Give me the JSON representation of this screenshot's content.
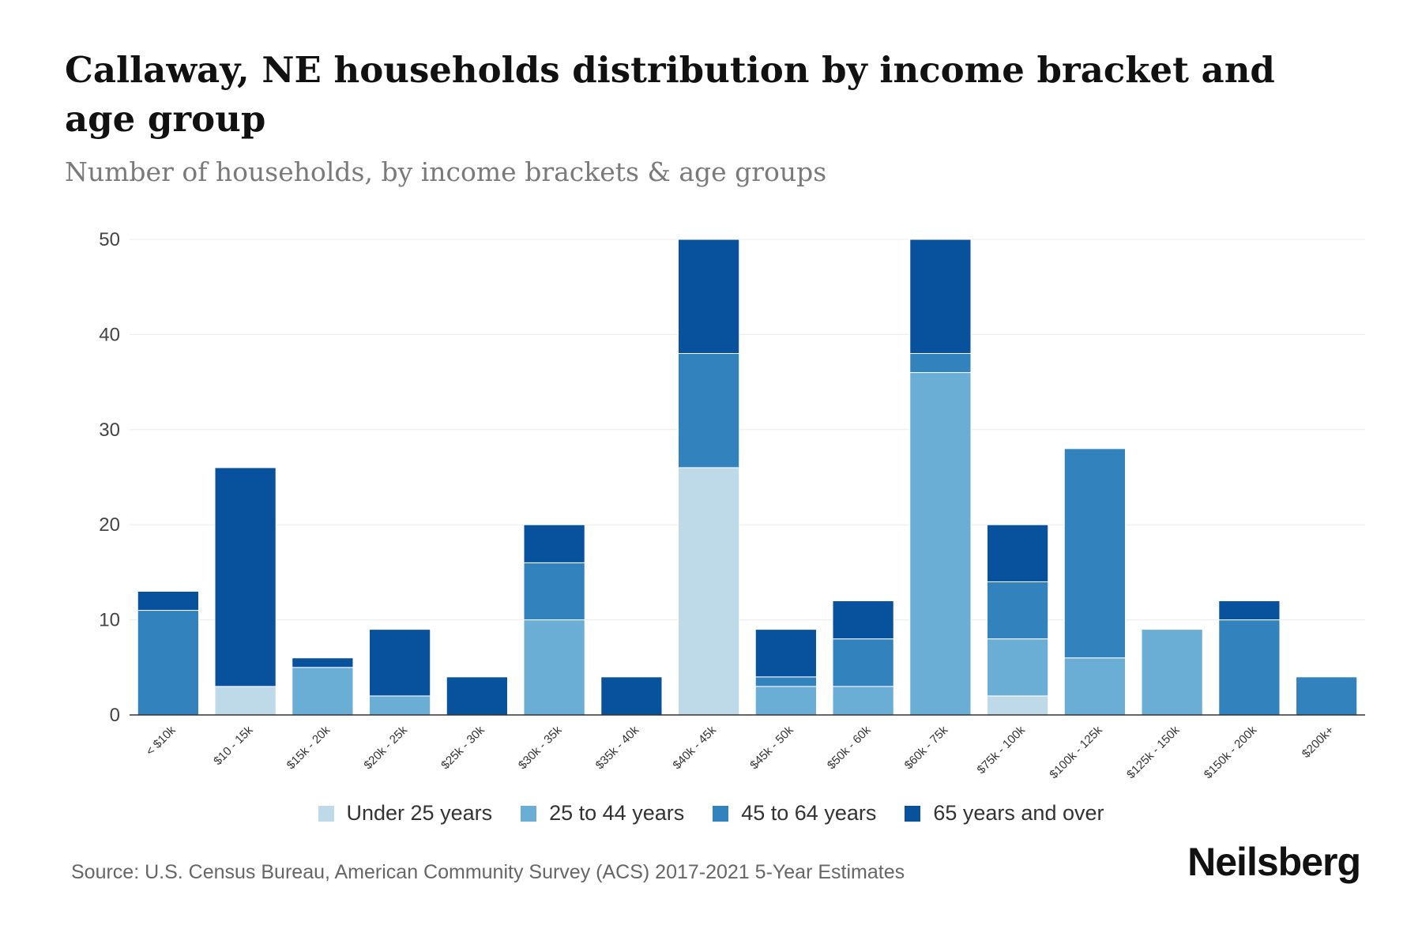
{
  "title": "Callaway, NE households distribution by income bracket and age group",
  "subtitle": "Number of households, by income brackets & age groups",
  "source": "Source: U.S. Census Bureau, American Community Survey (ACS) 2017-2021 5-Year Estimates",
  "brand": "Neilsberg",
  "chart_data": {
    "type": "bar",
    "stacked": true,
    "title": "Callaway, NE households distribution by income bracket and age group",
    "subtitle": "Number of households, by income brackets & age groups",
    "xlabel": "",
    "ylabel": "",
    "ylim": [
      0,
      50
    ],
    "yticks": [
      0,
      10,
      20,
      30,
      40,
      50
    ],
    "grid": true,
    "legend_position": "bottom",
    "categories": [
      "< $10k",
      "$10 - 15k",
      "$15k - 20k",
      "$20k - 25k",
      "$25k - 30k",
      "$30k - 35k",
      "$35k - 40k",
      "$40k - 45k",
      "$45k - 50k",
      "$50k - 60k",
      "$60k - 75k",
      "$75k - 100k",
      "$100k - 125k",
      "$125k - 150k",
      "$150k - 200k",
      "$200k+"
    ],
    "series": [
      {
        "name": "Under 25 years",
        "color": "#bed9e8",
        "values": [
          0,
          3,
          0,
          0,
          0,
          0,
          0,
          26,
          0,
          0,
          0,
          2,
          0,
          0,
          0,
          0
        ]
      },
      {
        "name": "25 to 44 years",
        "color": "#6aadd5",
        "values": [
          0,
          0,
          5,
          2,
          0,
          10,
          0,
          0,
          3,
          3,
          36,
          6,
          6,
          9,
          0,
          0
        ]
      },
      {
        "name": "45 to 64 years",
        "color": "#3282be",
        "values": [
          11,
          0,
          0,
          0,
          0,
          6,
          0,
          12,
          1,
          5,
          2,
          6,
          22,
          0,
          10,
          4
        ]
      },
      {
        "name": "65 years and over",
        "color": "#08519c",
        "values": [
          2,
          23,
          1,
          7,
          4,
          4,
          4,
          12,
          5,
          4,
          12,
          6,
          0,
          0,
          2,
          0
        ]
      }
    ]
  }
}
